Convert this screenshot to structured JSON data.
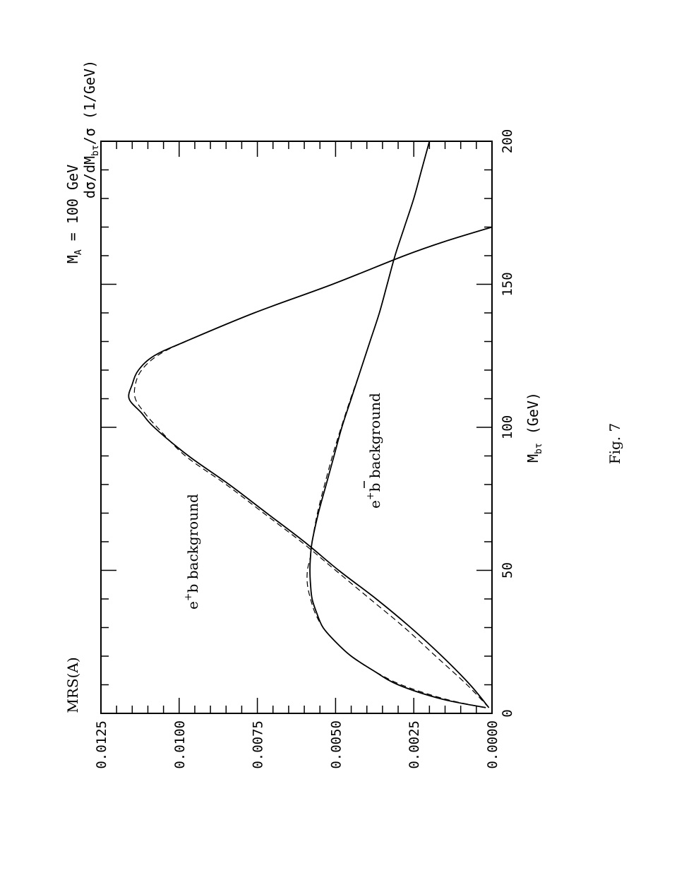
{
  "chart_data": {
    "type": "line",
    "x_axis": {
      "label_main": "M",
      "label_sub": "bτ",
      "label_unit": " (GeV)",
      "range": [
        0,
        200
      ],
      "ticks": [
        "0",
        "50",
        "100",
        "150",
        "200"
      ]
    },
    "y_axis": {
      "label_pre": "dσ/dM",
      "label_sub": "bτ",
      "label_post": "/σ (1/GeV)",
      "range": [
        0,
        0.0125
      ],
      "ticks": [
        "0.0000",
        "0.0025",
        "0.0050",
        "0.0075",
        "0.0100",
        "0.0125"
      ]
    },
    "annotations": {
      "top_left": "MRS(A)",
      "top_right_main": "M",
      "top_right_sub": "A",
      "top_right_rest": " = 100 GeV",
      "curve1_label": {
        "base": "e",
        "sup": "+",
        "quark": "b",
        "rest": " background"
      },
      "curve2_label": {
        "base": "e",
        "sup": "+",
        "quark": "b",
        "rest": " background"
      }
    },
    "caption": "Fig. 7",
    "series": [
      {
        "id": "ebar-b-solid",
        "style": "solid",
        "x": [
          2,
          5,
          10,
          15,
          20,
          25,
          30,
          35,
          40,
          45,
          50,
          55,
          60,
          70,
          80,
          90,
          100,
          110,
          120,
          130,
          140,
          150,
          160,
          170,
          180,
          190,
          200
        ],
        "y": [
          0.0002,
          0.0016,
          0.003,
          0.0038,
          0.0045,
          0.005,
          0.0054,
          0.0056,
          0.00575,
          0.0058,
          0.00582,
          0.0058,
          0.00575,
          0.00555,
          0.0053,
          0.00505,
          0.0048,
          0.0045,
          0.0042,
          0.0039,
          0.0036,
          0.00335,
          0.0031,
          0.0028,
          0.0025,
          0.00225,
          0.002
        ]
      },
      {
        "id": "ebar-b-dashed",
        "style": "dashed",
        "x": [
          2,
          5,
          10,
          15,
          20,
          25,
          30,
          35,
          40,
          45,
          50,
          55,
          60,
          70,
          80,
          90,
          100,
          110,
          120,
          130,
          140,
          150,
          160,
          170,
          180,
          190,
          200
        ],
        "y": [
          0.0002,
          0.0015,
          0.0029,
          0.0038,
          0.0045,
          0.005,
          0.0054,
          0.00565,
          0.0058,
          0.0059,
          0.0059,
          0.0058,
          0.00575,
          0.00558,
          0.00535,
          0.0051,
          0.00482,
          0.00452,
          0.0042,
          0.0039,
          0.0036,
          0.00335,
          0.0031,
          0.0028,
          0.0025,
          0.00225,
          0.002
        ]
      },
      {
        "id": "e-plus-b-solid",
        "style": "solid",
        "x": [
          2,
          10,
          20,
          30,
          40,
          50,
          60,
          70,
          80,
          90,
          100,
          105,
          110,
          115,
          120,
          125,
          130,
          140,
          150,
          160,
          165,
          170
        ],
        "y": [
          0.0001,
          0.0007,
          0.0016,
          0.0026,
          0.0037,
          0.0049,
          0.006,
          0.0072,
          0.0084,
          0.0097,
          0.0108,
          0.0112,
          0.0116,
          0.0115,
          0.0113,
          0.0108,
          0.0098,
          0.0076,
          0.0051,
          0.0028,
          0.0015,
          0.0
        ]
      },
      {
        "id": "e-plus-b-dashed",
        "style": "dashed",
        "x": [
          2,
          10,
          20,
          30,
          40,
          50,
          60,
          70,
          80,
          90,
          100,
          105,
          110,
          115,
          120,
          125,
          130,
          140,
          150,
          160,
          165,
          170
        ],
        "y": [
          0.0001,
          0.0008,
          0.0018,
          0.0028,
          0.0039,
          0.005,
          0.0061,
          0.0073,
          0.0085,
          0.0098,
          0.0107,
          0.0111,
          0.0114,
          0.0114,
          0.0112,
          0.0107,
          0.0098,
          0.0076,
          0.0051,
          0.0028,
          0.0015,
          0.0
        ]
      }
    ]
  }
}
